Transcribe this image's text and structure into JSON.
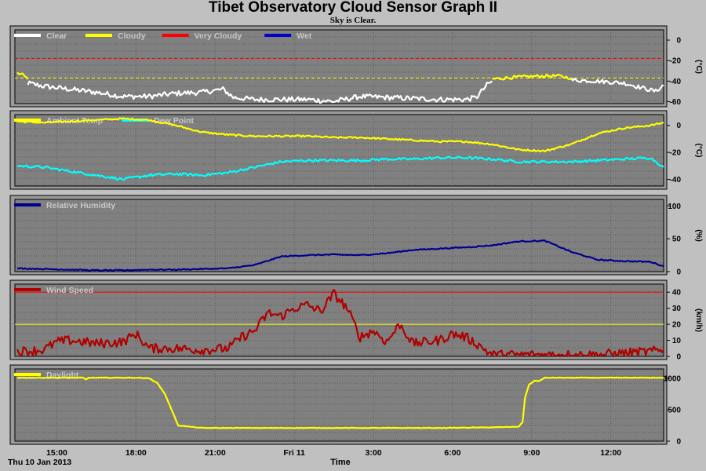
{
  "title": "Tibet Observatory Cloud Sensor Graph II",
  "subtitle": "Sky is Clear.",
  "colors": {
    "background": "#c0c0c0",
    "panel": "#808080",
    "clear": "#ffffff",
    "cloudy": "#ffff00",
    "very_cloudy": "#ff0000",
    "wet": "#0000cc",
    "ambient": "#ffff00",
    "dewpoint": "#00ffff",
    "humidity": "#000090",
    "wind": "#b00000",
    "daylight": "#ffff00"
  },
  "x_axis": {
    "label": "Time",
    "date_label": "Thu 10 Jan 2013",
    "ticks": [
      {
        "hours": 1.5,
        "label": "15:00"
      },
      {
        "hours": 4.5,
        "label": "18:00"
      },
      {
        "hours": 7.5,
        "label": "21:00"
      },
      {
        "hours": 10.5,
        "label": "Fri 11"
      },
      {
        "hours": 13.5,
        "label": "3:00"
      },
      {
        "hours": 16.5,
        "label": "6:00"
      },
      {
        "hours": 19.5,
        "label": "9:00"
      },
      {
        "hours": 22.5,
        "label": "12:00"
      }
    ],
    "range_hours": [
      0,
      24.5
    ]
  },
  "chart_data": [
    {
      "id": "sky",
      "type": "line",
      "ylabel": "(°C)",
      "ylim": [
        -62,
        10
      ],
      "yticks": [
        0,
        -20,
        -40,
        -60
      ],
      "thresholds": [
        {
          "value": -18,
          "color": "#ff0000"
        },
        {
          "value": -37,
          "color": "#ffff00"
        }
      ],
      "legend": [
        {
          "name": "Clear",
          "color": "#ffffff"
        },
        {
          "name": "Cloudy",
          "color": "#ffff00"
        },
        {
          "name": "Very Cloudy",
          "color": "#ff0000"
        },
        {
          "name": "Wet",
          "color": "#0000cc"
        }
      ],
      "series": [
        {
          "name": "Cloudy",
          "color": "#ffff00",
          "noise": 1.5,
          "x": [
            0,
            0.2,
            0.4
          ],
          "y": [
            -32,
            -34,
            -38
          ]
        },
        {
          "name": "Clear",
          "color": "#ffffff",
          "noise": 2.5,
          "x": [
            0.4,
            1,
            2,
            3,
            4,
            5,
            6,
            7,
            7.8,
            8.2,
            9,
            10,
            11,
            12,
            13,
            14,
            15,
            16,
            17,
            17.4
          ],
          "y": [
            -42,
            -45,
            -48,
            -51,
            -55,
            -55,
            -52,
            -51,
            -48,
            -56,
            -58,
            -58,
            -58,
            -60,
            -55,
            -56,
            -57,
            -58,
            -58,
            -56
          ]
        },
        {
          "name": "Clear",
          "color": "#ffffff",
          "noise": 2.5,
          "x": [
            17.4,
            17.6,
            17.8,
            18.0
          ],
          "y": [
            -56,
            -50,
            -44,
            -40
          ]
        },
        {
          "name": "Cloudy",
          "color": "#ffff00",
          "noise": 1.5,
          "x": [
            18.0,
            19,
            20,
            20.5,
            21
          ],
          "y": [
            -38,
            -36,
            -35,
            -35,
            -37
          ]
        },
        {
          "name": "Clear",
          "color": "#ffffff",
          "noise": 2.0,
          "x": [
            21,
            22,
            23,
            23.6,
            24.2,
            24.5
          ],
          "y": [
            -39,
            -40,
            -42,
            -46,
            -50,
            -44
          ]
        }
      ]
    },
    {
      "id": "temp",
      "type": "line",
      "ylabel": "(°C)",
      "ylim": [
        -45,
        8
      ],
      "yticks": [
        0,
        -20,
        -40
      ],
      "legend": [
        {
          "name": "Ambient Temp",
          "color": "#ffff00"
        },
        {
          "name": "Dew Point",
          "color": "#00ffff"
        }
      ],
      "series": [
        {
          "name": "Ambient Temp",
          "color": "#ffff00",
          "noise": 0.6,
          "x": [
            0,
            1,
            2,
            3,
            4,
            5,
            6,
            7,
            8,
            9,
            10,
            11,
            12,
            13,
            14,
            15,
            16,
            17,
            18,
            19,
            20,
            21,
            22,
            23,
            24,
            24.5
          ],
          "y": [
            3,
            2,
            3,
            4,
            5,
            4,
            0,
            -5,
            -7,
            -8,
            -8,
            -8,
            -9,
            -9,
            -10,
            -11,
            -12,
            -12,
            -14,
            -18,
            -19,
            -14,
            -6,
            -2,
            0,
            2
          ]
        },
        {
          "name": "Dew Point",
          "color": "#00ffff",
          "noise": 0.9,
          "x": [
            0,
            1,
            2,
            3,
            4,
            5,
            6,
            7,
            8,
            9,
            10,
            11,
            12,
            13,
            14,
            15,
            16,
            17,
            18,
            19,
            20,
            21,
            22,
            23,
            24,
            24.5
          ],
          "y": [
            -30,
            -31,
            -34,
            -37,
            -40,
            -37,
            -36,
            -37,
            -35,
            -31,
            -27,
            -26,
            -26,
            -26,
            -25,
            -25,
            -24,
            -24,
            -25,
            -27,
            -27,
            -27,
            -26,
            -25,
            -24,
            -31
          ]
        }
      ]
    },
    {
      "id": "humidity",
      "type": "line",
      "ylabel": "(%)",
      "ylim": [
        0,
        110
      ],
      "yticks": [
        100,
        50,
        0
      ],
      "legend": [
        {
          "name": "Relative Humidity",
          "color": "#000090"
        }
      ],
      "series": [
        {
          "name": "Relative Humidity",
          "color": "#000090",
          "noise": 0.8,
          "x": [
            0,
            1,
            2,
            3,
            4,
            5,
            6,
            7,
            8,
            9,
            10,
            11,
            12,
            13,
            14,
            15,
            16,
            17,
            18,
            19,
            20,
            21,
            22,
            23,
            24,
            24.5
          ],
          "y": [
            5,
            4,
            3,
            2,
            2,
            3,
            3,
            4,
            5,
            10,
            23,
            25,
            26,
            25,
            28,
            33,
            35,
            37,
            40,
            46,
            47,
            30,
            18,
            16,
            15,
            8
          ]
        }
      ]
    },
    {
      "id": "wind",
      "type": "line",
      "ylabel": "(km/h)",
      "ylim": [
        0,
        45
      ],
      "yticks": [
        40,
        30,
        20,
        10,
        0
      ],
      "thresholds": [
        {
          "value": 40,
          "color": "#ff0000"
        },
        {
          "value": 20,
          "color": "#ffff00"
        }
      ],
      "legend": [
        {
          "name": "Wind Speed",
          "color": "#b00000"
        }
      ],
      "series": [
        {
          "name": "Wind Speed",
          "color": "#b00000",
          "noise": 3.0,
          "x": [
            0,
            1,
            1.5,
            2,
            3,
            4,
            4.5,
            5,
            6,
            7,
            8,
            8.5,
            9,
            9.5,
            10,
            10.5,
            11,
            11.5,
            12,
            12.5,
            13,
            13.5,
            14,
            14.5,
            15,
            16,
            16.5,
            17,
            17.5,
            18,
            19,
            20,
            21,
            22,
            23,
            24,
            24.5
          ],
          "y": [
            3,
            4,
            9,
            10,
            8,
            9,
            14,
            5,
            5,
            4,
            5,
            12,
            16,
            27,
            25,
            30,
            32,
            28,
            39,
            30,
            12,
            16,
            9,
            20,
            8,
            10,
            14,
            12,
            7,
            1,
            1,
            1,
            1,
            1,
            2,
            3,
            4
          ]
        }
      ]
    },
    {
      "id": "daylight",
      "type": "line",
      "ylabel": "",
      "ylim": [
        0,
        1150
      ],
      "yticks": [
        1000,
        500,
        0
      ],
      "legend": [
        {
          "name": "Daylight",
          "color": "#ffff00"
        }
      ],
      "series": [
        {
          "name": "Daylight",
          "color": "#ffff00",
          "noise": 4,
          "x": [
            0,
            2.5,
            2.6,
            2.7,
            3,
            4.5,
            5,
            5.3,
            5.6,
            5.9,
            6.1,
            7,
            10,
            13,
            16,
            18,
            19,
            19.15,
            19.25,
            19.4,
            19.6,
            19.8,
            20,
            22,
            24.5
          ],
          "y": [
            1010,
            1010,
            980,
            1010,
            1010,
            1010,
            1000,
            930,
            750,
            450,
            250,
            210,
            210,
            210,
            210,
            220,
            230,
            300,
            700,
            900,
            960,
            960,
            1010,
            1010,
            1010
          ]
        }
      ]
    }
  ]
}
